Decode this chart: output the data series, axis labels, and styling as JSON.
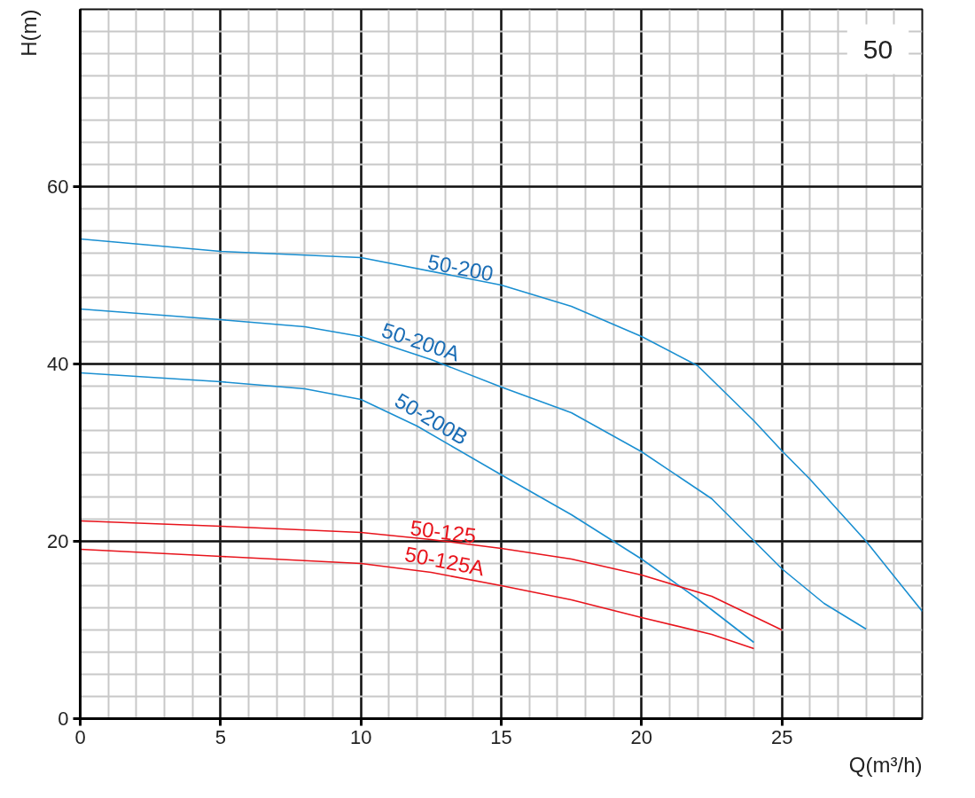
{
  "chart_data": {
    "type": "line",
    "xlabel": "Q(m³/h)",
    "ylabel": "H(m)",
    "annotations": [
      "50"
    ],
    "xlim": [
      0,
      30
    ],
    "ylim": [
      0,
      80
    ],
    "xticks": [
      0,
      5,
      10,
      15,
      20,
      25
    ],
    "yticks": [
      0,
      20,
      40,
      60
    ],
    "grid": true,
    "marker": "none",
    "line_style": "solid",
    "series": [
      {
        "name": "50-200",
        "color": "#1a8fd1",
        "x": [
          0,
          5,
          10,
          15,
          17.5,
          20,
          22,
          24,
          25,
          26,
          28,
          30
        ],
        "values": [
          54.1,
          52.7,
          52,
          48.9,
          46.5,
          43.1,
          39.8,
          33.6,
          30.2,
          27,
          20,
          12.1
        ]
      },
      {
        "name": "50-200A",
        "color": "#1a8fd1",
        "x": [
          0,
          5,
          8,
          10,
          12.5,
          15,
          17.5,
          20,
          22.5,
          25,
          26.5,
          28
        ],
        "values": [
          46.2,
          45,
          44.2,
          43.1,
          40.5,
          37.4,
          34.5,
          30.1,
          24.8,
          16.9,
          13,
          10.1
        ]
      },
      {
        "name": "50-200B",
        "color": "#1a8fd1",
        "x": [
          0,
          5,
          8,
          10,
          12,
          15,
          17.5,
          19,
          20,
          22,
          24
        ],
        "values": [
          39,
          38,
          37.2,
          36,
          33,
          27.5,
          23,
          20,
          18,
          13.5,
          8.6
        ]
      },
      {
        "name": "50-125",
        "color": "#e8141c",
        "x": [
          0,
          5,
          10,
          12.5,
          15,
          17.5,
          20,
          22.5,
          25
        ],
        "values": [
          22.3,
          21.7,
          21,
          20.2,
          19.2,
          18,
          16.2,
          13.8,
          10
        ]
      },
      {
        "name": "50-125A",
        "color": "#e8141c",
        "x": [
          0,
          5,
          10,
          12.5,
          15,
          17.5,
          20,
          22.5,
          24
        ],
        "values": [
          19.1,
          18.3,
          17.5,
          16.5,
          15,
          13.4,
          11.4,
          9.5,
          7.9
        ]
      }
    ]
  }
}
